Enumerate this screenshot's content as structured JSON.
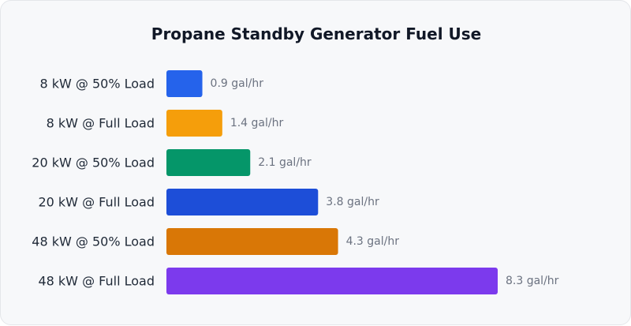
{
  "chart_data": {
    "type": "bar",
    "orientation": "horizontal",
    "title": "Propane Standby Generator Fuel Use",
    "categories": [
      "8 kW @ 50% Load",
      "8 kW @ Full Load",
      "20 kW @ 50% Load",
      "20 kW @ Full Load",
      "48 kW @ 50% Load",
      "48 kW @ Full Load"
    ],
    "values": [
      0.9,
      1.4,
      2.1,
      3.8,
      4.3,
      8.3
    ],
    "value_labels": [
      "0.9 gal/hr",
      "1.4 gal/hr",
      "2.1 gal/hr",
      "3.8 gal/hr",
      "4.3 gal/hr",
      "8.3 gal/hr"
    ],
    "colors": [
      "#2563eb",
      "#f59e0b",
      "#059669",
      "#1d4ed8",
      "#d97706",
      "#7c3aed"
    ],
    "xlim": [
      0,
      8.3
    ],
    "grid": false,
    "legend": "none"
  }
}
